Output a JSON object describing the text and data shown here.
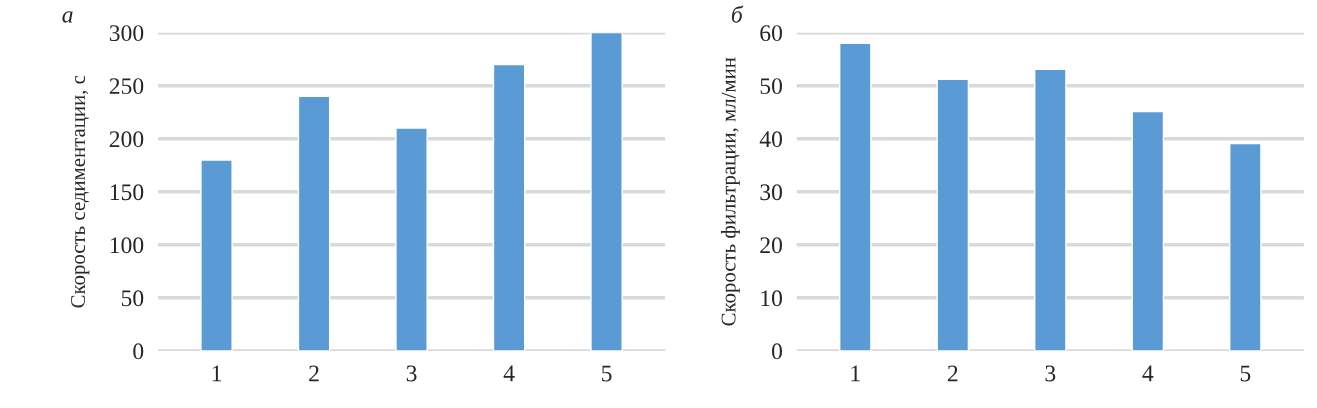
{
  "chart_data": [
    {
      "type": "bar",
      "title": "а",
      "ylabel": "Скорость седиментации, с",
      "categories": [
        "1",
        "2",
        "3",
        "4",
        "5"
      ],
      "values": [
        180,
        240,
        210,
        270,
        300
      ],
      "color": "#5b9bd5",
      "ylim": [
        0,
        300
      ],
      "yticks": [
        0,
        50,
        100,
        150,
        200,
        250,
        300
      ],
      "grid": "y"
    },
    {
      "type": "bar",
      "title": "б",
      "ylabel": "Скорость фильтрации, мл/мин",
      "categories": [
        "1",
        "2",
        "3",
        "4",
        "5"
      ],
      "values": [
        58,
        51.2,
        53.1,
        45.1,
        39.1
      ],
      "color": "#5b9bd5",
      "ylim": [
        0,
        60
      ],
      "yticks": [
        0,
        10,
        20,
        30,
        40,
        50,
        60
      ],
      "grid": "y"
    }
  ]
}
